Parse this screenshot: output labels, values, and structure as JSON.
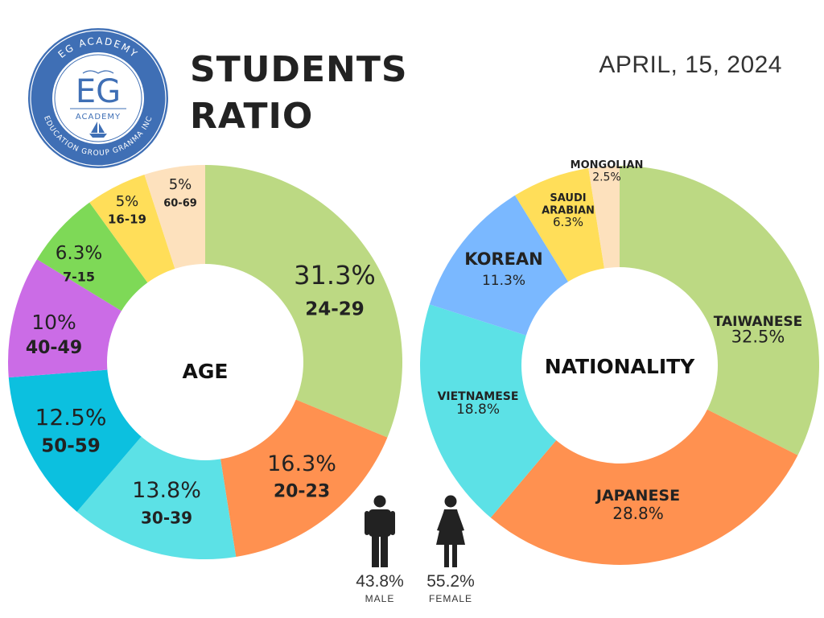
{
  "header": {
    "title_line1": "STUDENTS",
    "title_line2": "RATIO",
    "date": "APRIL, 15, 2024"
  },
  "logo": {
    "top_arc": "EG ACADEMY",
    "monogram": "EG",
    "sub": "ACADEMY",
    "bottom_arc": "EDUCATION GROUP GRANMA INC",
    "ring_color": "#3f6fb5"
  },
  "chart_data": [
    {
      "type": "donut",
      "center_label": "AGE",
      "start_angle_deg": 0,
      "slices": [
        {
          "label": "24-29",
          "value": 31.3,
          "value_text": "31.3%",
          "color": "#bcd983"
        },
        {
          "label": "20-23",
          "value": 16.3,
          "value_text": "16.3%",
          "color": "#ff9150"
        },
        {
          "label": "30-39",
          "value": 13.8,
          "value_text": "13.8%",
          "color": "#5ce1e6"
        },
        {
          "label": "50-59",
          "value": 12.5,
          "value_text": "12.5%",
          "color": "#0cc0df"
        },
        {
          "label": "40-49",
          "value": 10,
          "value_text": "10%",
          "color": "#cb6ce6"
        },
        {
          "label": "7-15",
          "value": 6.3,
          "value_text": "6.3%",
          "color": "#7ed957"
        },
        {
          "label": "16-19",
          "value": 5,
          "value_text": "5%",
          "color": "#ffde59"
        },
        {
          "label": "60-69",
          "value": 5,
          "value_text": "5%",
          "color": "#fde1bd"
        }
      ]
    },
    {
      "type": "donut",
      "center_label": "NATIONALITY",
      "start_angle_deg": 0,
      "slices": [
        {
          "label": "TAIWANESE",
          "value": 32.5,
          "value_text": "32.5%",
          "color": "#bcd983"
        },
        {
          "label": "JAPANESE",
          "value": 28.8,
          "value_text": "28.8%",
          "color": "#ff9150"
        },
        {
          "label": "VIETNAMESE",
          "value": 18.8,
          "value_text": "18.8%",
          "color": "#5ce1e6"
        },
        {
          "label": "KOREAN",
          "value": 11.3,
          "value_text": "11.3%",
          "color": "#7ab8ff"
        },
        {
          "label": "SAUDI ARABIAN",
          "value": 6.3,
          "value_text": "6.3%",
          "color": "#ffde59"
        },
        {
          "label": "MONGOLIAN",
          "value": 2.5,
          "value_text": "2.5%",
          "color": "#fde1bd"
        }
      ]
    }
  ],
  "gender": {
    "male": {
      "label": "MALE",
      "value": 43.8,
      "value_text": "43.8%",
      "icon": "male-person-icon"
    },
    "female": {
      "label": "FEMALE",
      "value": 55.2,
      "value_text": "55.2%",
      "icon": "female-person-icon"
    }
  }
}
